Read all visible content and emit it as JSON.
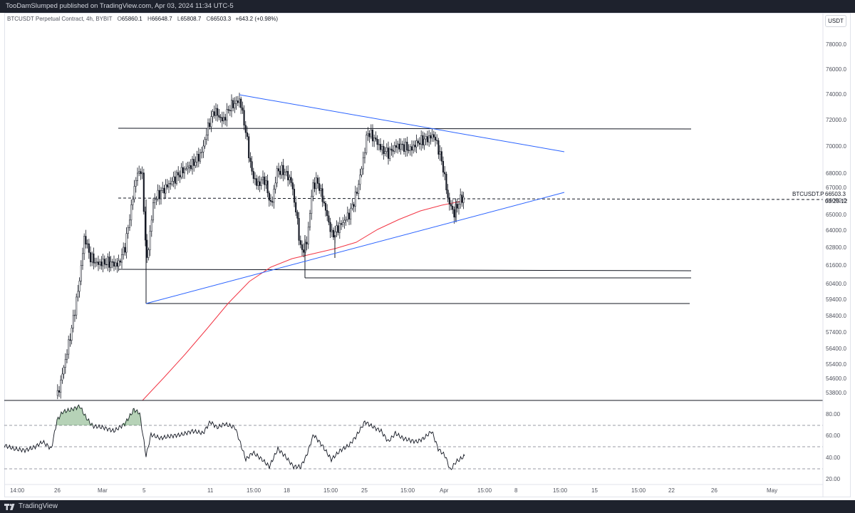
{
  "header": {
    "published": "TooDamSlumped published on TradingView.com, Apr 03, 2024 11:34 UTC-5"
  },
  "legend": {
    "symbol": "BTCUSDT Perpetual Contract, 4h, BYBIT",
    "open_label": "O",
    "open": "65860.1",
    "high_label": "H",
    "high": "66648.7",
    "low_label": "L",
    "low": "65808.7",
    "close_label": "C",
    "close": "66503.3",
    "change": "+643.2 (+0.98%)"
  },
  "currency_button": "USDT",
  "price_axis": {
    "labels": [
      "78000.0",
      "76000.0",
      "74000.0",
      "72000.0",
      "70000.0",
      "68000.0",
      "67000.0",
      "66000.0",
      "65000.0",
      "64000.0",
      "62800.0",
      "61600.0",
      "60400.0",
      "59400.0",
      "58400.0",
      "57400.0",
      "56400.0",
      "55400.0",
      "54600.0",
      "53800.0"
    ]
  },
  "last_price": {
    "symbol_label": "BTCUSDT.P",
    "price": "66503.3",
    "countdown": "03:25:12"
  },
  "rsi_axis": {
    "labels": [
      "80.00",
      "60.00",
      "40.00",
      "20.00"
    ]
  },
  "time_axis": {
    "labels": [
      "14:00",
      "26",
      "Mar",
      "5",
      "11",
      "15:00",
      "18",
      "15:00",
      "25",
      "15:00",
      "Apr",
      "15:00",
      "8",
      "15:00",
      "15",
      "15:00",
      "22",
      "26",
      "May"
    ]
  },
  "footer": {
    "brand": "TradingView"
  },
  "colors": {
    "candle": "#131722",
    "ma_line": "#f23645",
    "trendline": "#2962ff",
    "level_line": "#131722",
    "rsi_fill": "#2e7d32"
  }
}
